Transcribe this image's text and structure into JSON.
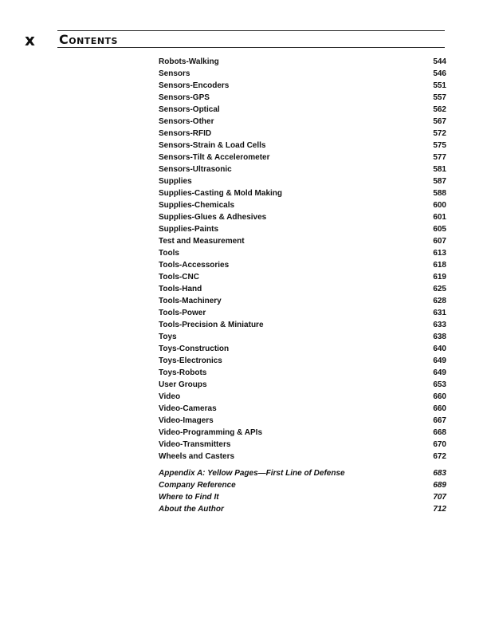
{
  "header": {
    "marker": "x",
    "title": "Contents"
  },
  "entries": [
    {
      "label": "Robots-Walking",
      "page": "544"
    },
    {
      "label": "Sensors",
      "page": "546"
    },
    {
      "label": "Sensors-Encoders",
      "page": "551"
    },
    {
      "label": "Sensors-GPS",
      "page": "557"
    },
    {
      "label": "Sensors-Optical",
      "page": "562"
    },
    {
      "label": "Sensors-Other",
      "page": "567"
    },
    {
      "label": "Sensors-RFID",
      "page": "572"
    },
    {
      "label": "Sensors-Strain & Load Cells",
      "page": "575"
    },
    {
      "label": "Sensors-Tilt & Accelerometer",
      "page": "577"
    },
    {
      "label": "Sensors-Ultrasonic",
      "page": "581"
    },
    {
      "label": "Supplies",
      "page": "587"
    },
    {
      "label": "Supplies-Casting & Mold Making",
      "page": "588"
    },
    {
      "label": "Supplies-Chemicals",
      "page": "600"
    },
    {
      "label": "Supplies-Glues & Adhesives",
      "page": "601"
    },
    {
      "label": "Supplies-Paints",
      "page": "605"
    },
    {
      "label": "Test and Measurement",
      "page": "607"
    },
    {
      "label": "Tools",
      "page": "613"
    },
    {
      "label": "Tools-Accessories",
      "page": "618"
    },
    {
      "label": "Tools-CNC",
      "page": "619"
    },
    {
      "label": "Tools-Hand",
      "page": "625"
    },
    {
      "label": "Tools-Machinery",
      "page": "628"
    },
    {
      "label": "Tools-Power",
      "page": "631"
    },
    {
      "label": "Tools-Precision & Miniature",
      "page": "633"
    },
    {
      "label": "Toys",
      "page": "638"
    },
    {
      "label": "Toys-Construction",
      "page": "640"
    },
    {
      "label": "Toys-Electronics",
      "page": "649"
    },
    {
      "label": "Toys-Robots",
      "page": "649"
    },
    {
      "label": "User Groups",
      "page": "653"
    },
    {
      "label": "Video",
      "page": "660"
    },
    {
      "label": "Video-Cameras",
      "page": "660"
    },
    {
      "label": "Video-Imagers",
      "page": "667"
    },
    {
      "label": "Video-Programming & APIs",
      "page": "668"
    },
    {
      "label": "Video-Transmitters",
      "page": "670"
    },
    {
      "label": "Wheels and Casters",
      "page": "672"
    }
  ],
  "appendix": [
    {
      "label": "Appendix A: Yellow Pages—First Line of Defense",
      "page": "683"
    },
    {
      "label": "Company Reference",
      "page": "689"
    },
    {
      "label": "Where to Find It",
      "page": "707"
    },
    {
      "label": "About the Author",
      "page": "712"
    }
  ]
}
